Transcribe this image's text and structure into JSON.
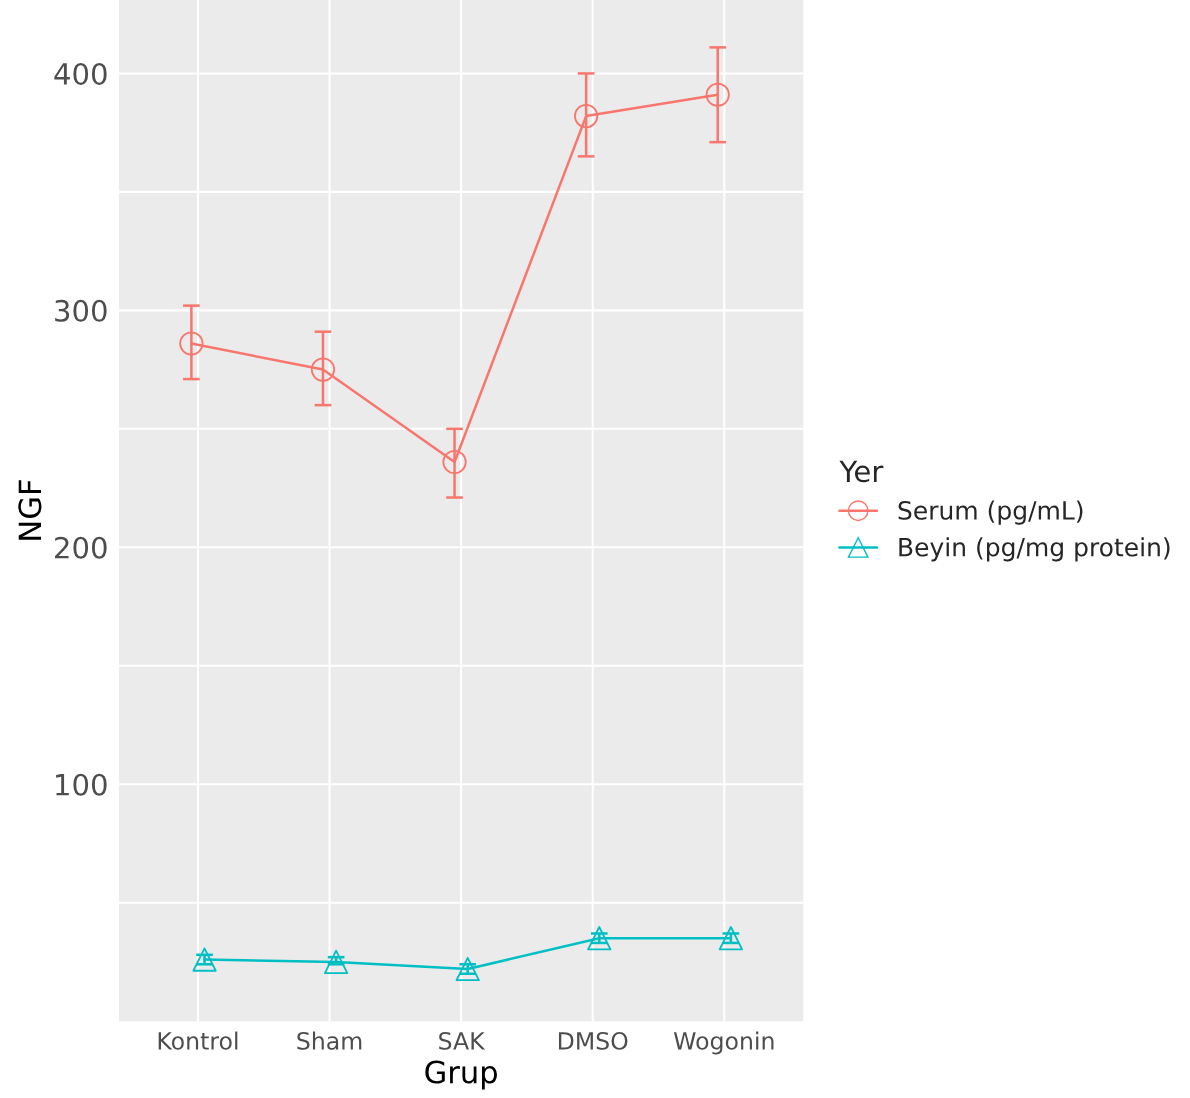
{
  "chart_data": {
    "type": "line",
    "xlabel": "Grup",
    "ylabel": "NGF",
    "legend_title": "Yer",
    "categories": [
      "Kontrol",
      "Sham",
      "SAK",
      "DMSO",
      "Wogonin"
    ],
    "series": [
      {
        "name": "Serum (pg/mL)",
        "color": "#f8766d",
        "marker": "circle",
        "values": [
          286,
          275,
          236,
          382,
          391
        ],
        "errors": [
          [
            271,
            302
          ],
          [
            260,
            291
          ],
          [
            221,
            250
          ],
          [
            365,
            400
          ],
          [
            371,
            411
          ]
        ]
      },
      {
        "name": "Beyin (pg/mg protein)",
        "color": "#00bfc4",
        "marker": "triangle",
        "values": [
          26,
          25,
          22,
          35,
          35
        ],
        "errors": [
          [
            24,
            28
          ],
          [
            24,
            27
          ],
          [
            20,
            24
          ],
          [
            33,
            37
          ],
          [
            33,
            37
          ]
        ]
      }
    ],
    "ylim": [
      0,
      431
    ],
    "yticks": [
      {
        "value": 50,
        "label": null
      },
      100,
      {
        "value": 150,
        "label": null
      },
      200,
      {
        "value": 250,
        "label": null
      },
      300,
      {
        "value": 350,
        "label": null
      },
      400
    ],
    "grid": true,
    "legend": "right",
    "line_style": "solid"
  }
}
